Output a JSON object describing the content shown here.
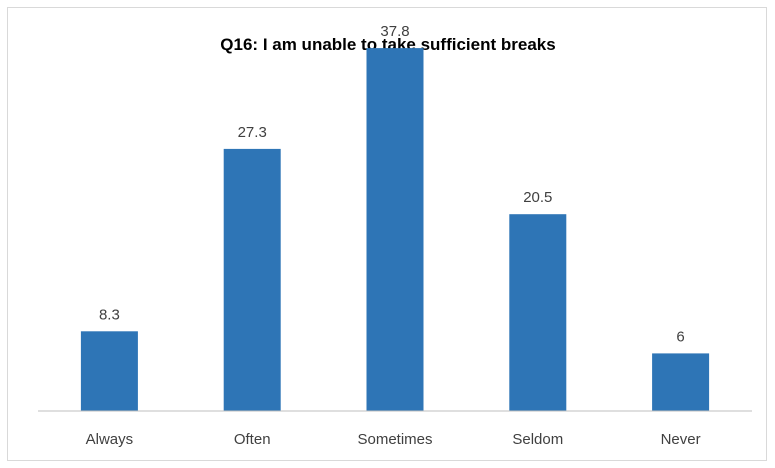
{
  "chart_data": {
    "type": "bar",
    "title": "Q16:  I am unable to take sufficient breaks",
    "categories": [
      "Always",
      "Often",
      "Sometimes",
      "Seldom",
      "Never"
    ],
    "values": [
      8.3,
      27.3,
      37.8,
      20.5,
      6
    ],
    "data_labels": [
      "8.3",
      "27.3",
      "37.8",
      "20.5",
      "6"
    ],
    "xlabel": "",
    "ylabel": "",
    "ylim": [
      0,
      40
    ],
    "grid": false,
    "legend": "none",
    "bar_color": "#2e75b6",
    "axis_color": "#bfbfbf"
  }
}
